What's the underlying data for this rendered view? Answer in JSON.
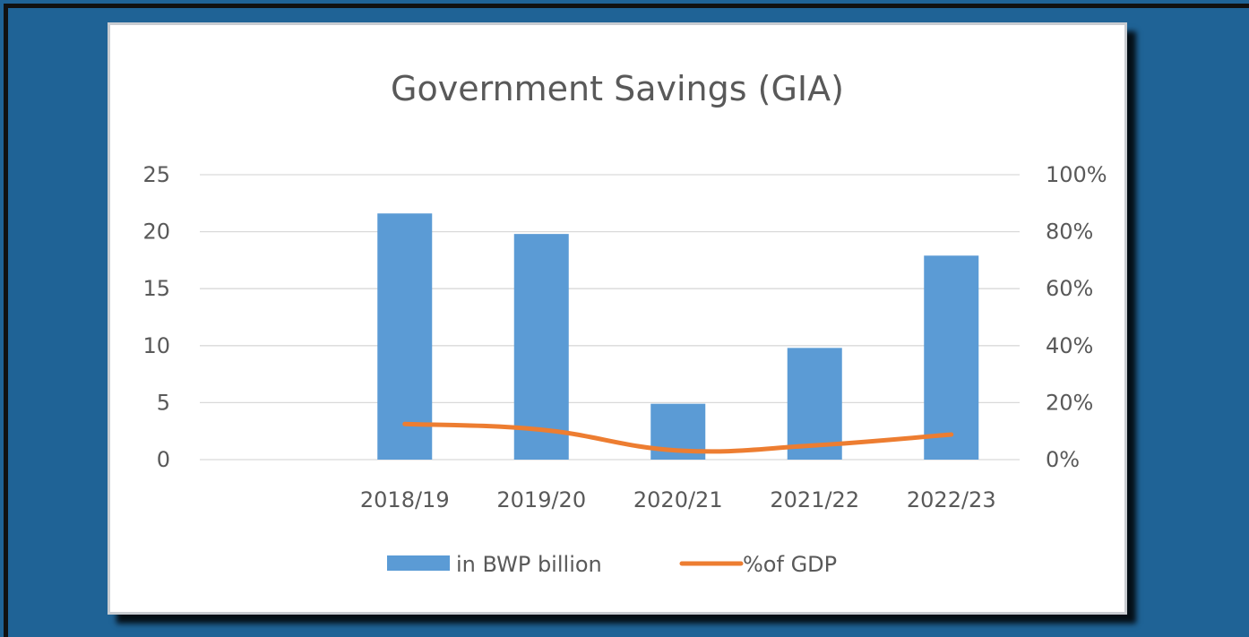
{
  "chart_data": {
    "type": "bar",
    "title": "Government Savings (GIA)",
    "categories": [
      "",
      "2018/19",
      "2019/20",
      "2020/21",
      "2021/22",
      "2022/23"
    ],
    "series": [
      {
        "name": "in BWP billion",
        "type": "bar",
        "axis": "left",
        "values": [
          null,
          21.6,
          19.8,
          4.9,
          9.8,
          17.9
        ]
      },
      {
        "name": "%of GDP",
        "type": "line",
        "axis": "right",
        "values": [
          null,
          12.5,
          10.5,
          3.2,
          5.0,
          8.8
        ]
      }
    ],
    "ylim": [
      0,
      25
    ],
    "yticks": [
      "0",
      "5",
      "10",
      "15",
      "20",
      "25"
    ],
    "y2lim": [
      0,
      100
    ],
    "y2ticks": [
      "0%",
      "20%",
      "40%",
      "60%",
      "80%",
      "100%"
    ],
    "grid": true,
    "legend": "bottom",
    "colors": {
      "bar": "#5b9bd5",
      "line": "#ed7d31",
      "grid": "#d9d9d9",
      "text": "#595959"
    }
  }
}
